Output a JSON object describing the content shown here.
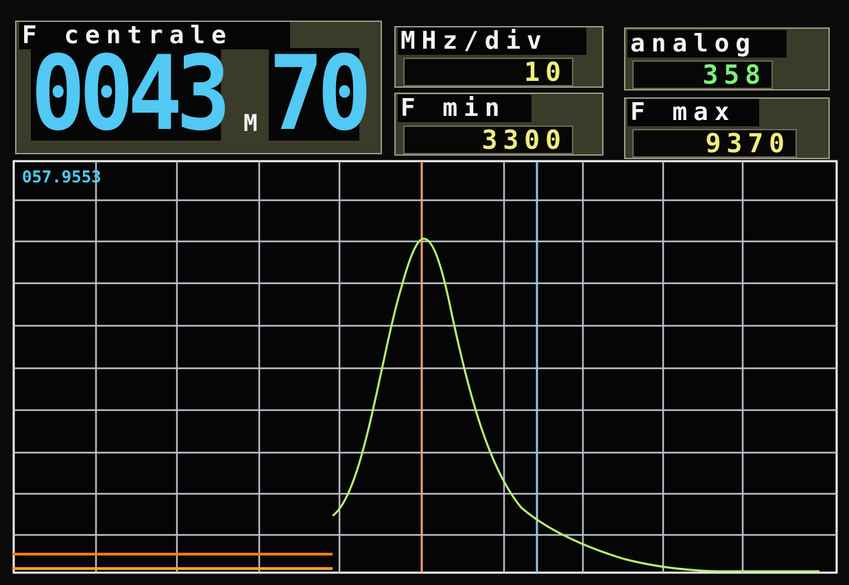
{
  "header": {
    "center_label": "F centrale",
    "center_digits": "0043",
    "center_unit": "M",
    "center_decimals": "70",
    "div_label": "MHz/div",
    "div_value": "10",
    "analog_label": "analog",
    "analog_value": "358",
    "fmin_label": "F min",
    "fmin_value": "3300",
    "fmax_label": "F max",
    "fmax_value": "9370"
  },
  "plot": {
    "readout": "057.9553"
  }
}
